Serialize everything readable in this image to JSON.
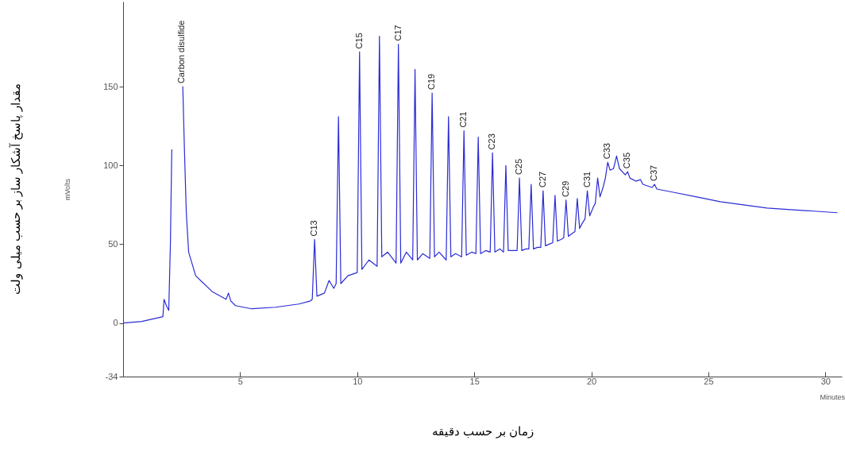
{
  "chart_data": {
    "type": "line",
    "xlabel": "زمان بر حسب دقیقه",
    "ylabel": "mVolts",
    "xlim": [
      0,
      30.7
    ],
    "xticks": [
      5,
      10,
      15,
      20,
      25,
      30
    ],
    "ylim": [
      -34,
      204
    ],
    "yticks": [
      -34,
      0,
      50,
      100,
      150
    ],
    "grid": false,
    "series": [
      {
        "color": "#2b2bd6",
        "x": [
          0,
          0.8,
          1.4,
          1.7,
          1.75,
          1.85,
          1.95,
          2.02,
          2.08,
          2.15,
          2.45,
          2.55,
          2.62,
          2.7,
          2.8,
          3.1,
          3.8,
          4.4,
          4.5,
          4.6,
          4.8,
          5.5,
          6.5,
          7.5,
          8.0,
          8.08,
          8.18,
          8.28,
          8.6,
          8.8,
          9.0,
          9.1,
          9.2,
          9.3,
          9.6,
          10.0,
          10.1,
          10.2,
          10.5,
          10.85,
          10.95,
          11.05,
          11.3,
          11.66,
          11.76,
          11.86,
          12.1,
          12.37,
          12.47,
          12.57,
          12.8,
          13.1,
          13.2,
          13.3,
          13.5,
          13.8,
          13.9,
          14.0,
          14.2,
          14.46,
          14.56,
          14.66,
          14.9,
          15.07,
          15.17,
          15.27,
          15.5,
          15.68,
          15.78,
          15.88,
          16.1,
          16.25,
          16.35,
          16.45,
          16.7,
          16.83,
          16.93,
          17.03,
          17.2,
          17.33,
          17.43,
          17.53,
          17.7,
          17.84,
          17.94,
          18.04,
          18.2,
          18.35,
          18.45,
          18.55,
          18.7,
          18.82,
          18.92,
          19.02,
          19.2,
          19.3,
          19.4,
          19.5,
          19.6,
          19.73,
          19.83,
          19.93,
          20.1,
          20.17,
          20.27,
          20.37,
          20.5,
          20.6,
          20.7,
          20.8,
          20.95,
          21.08,
          21.2,
          21.45,
          21.55,
          21.65,
          21.9,
          22.1,
          22.2,
          22.6,
          22.7,
          22.8,
          23.5,
          24.5,
          25.5,
          26.5,
          27.5,
          28.5,
          29.5,
          30.5
        ],
        "values": [
          0,
          1,
          3,
          4,
          15,
          11,
          8,
          50,
          110,
          null,
          null,
          150,
          110,
          70,
          45,
          30,
          20,
          15,
          19,
          14,
          11,
          9,
          10,
          12,
          14,
          15,
          53,
          17,
          19,
          27,
          22,
          25,
          131,
          25,
          30,
          32,
          172,
          34,
          40,
          36,
          182,
          42,
          45,
          38,
          177,
          38,
          45,
          40,
          161,
          40,
          44,
          41,
          146,
          42,
          45,
          40,
          131,
          42,
          44,
          42,
          122,
          43,
          45,
          44,
          118,
          44,
          46,
          45,
          108,
          45,
          47,
          45,
          100,
          46,
          46,
          46,
          92,
          46,
          47,
          47,
          88,
          47,
          48,
          48,
          84,
          49,
          50,
          51,
          81,
          52,
          53,
          54,
          78,
          55,
          57,
          58,
          79,
          60,
          63,
          66,
          84,
          68,
          74,
          76,
          92,
          80,
          86,
          92,
          102,
          97,
          98,
          106,
          98,
          94,
          96,
          92,
          90,
          91,
          88,
          86,
          88,
          85,
          83,
          80,
          77,
          75,
          73,
          72,
          71,
          70
        ]
      }
    ],
    "annotations": [
      "مقدار پاسخ آشکار ساز بر حسب میلی ولت",
      "Minutes",
      {
        "text": "Carbon disulfide",
        "x": 2.5,
        "y": 150
      },
      {
        "text": "C13",
        "x": 8.18,
        "y": 53
      },
      {
        "text": "C15",
        "x": 10.1,
        "y": 172
      },
      {
        "text": "C17",
        "x": 11.76,
        "y": 177
      },
      {
        "text": "C19",
        "x": 13.2,
        "y": 146
      },
      {
        "text": "C21",
        "x": 14.56,
        "y": 122
      },
      {
        "text": "C23",
        "x": 15.78,
        "y": 108
      },
      {
        "text": "C25",
        "x": 16.93,
        "y": 92
      },
      {
        "text": "C27",
        "x": 17.94,
        "y": 84
      },
      {
        "text": "C29",
        "x": 18.92,
        "y": 78
      },
      {
        "text": "C31",
        "x": 19.83,
        "y": 84
      },
      {
        "text": "C33",
        "x": 20.7,
        "y": 102
      },
      {
        "text": "C35",
        "x": 21.55,
        "y": 96
      },
      {
        "text": "C37",
        "x": 22.7,
        "y": 88
      }
    ]
  }
}
